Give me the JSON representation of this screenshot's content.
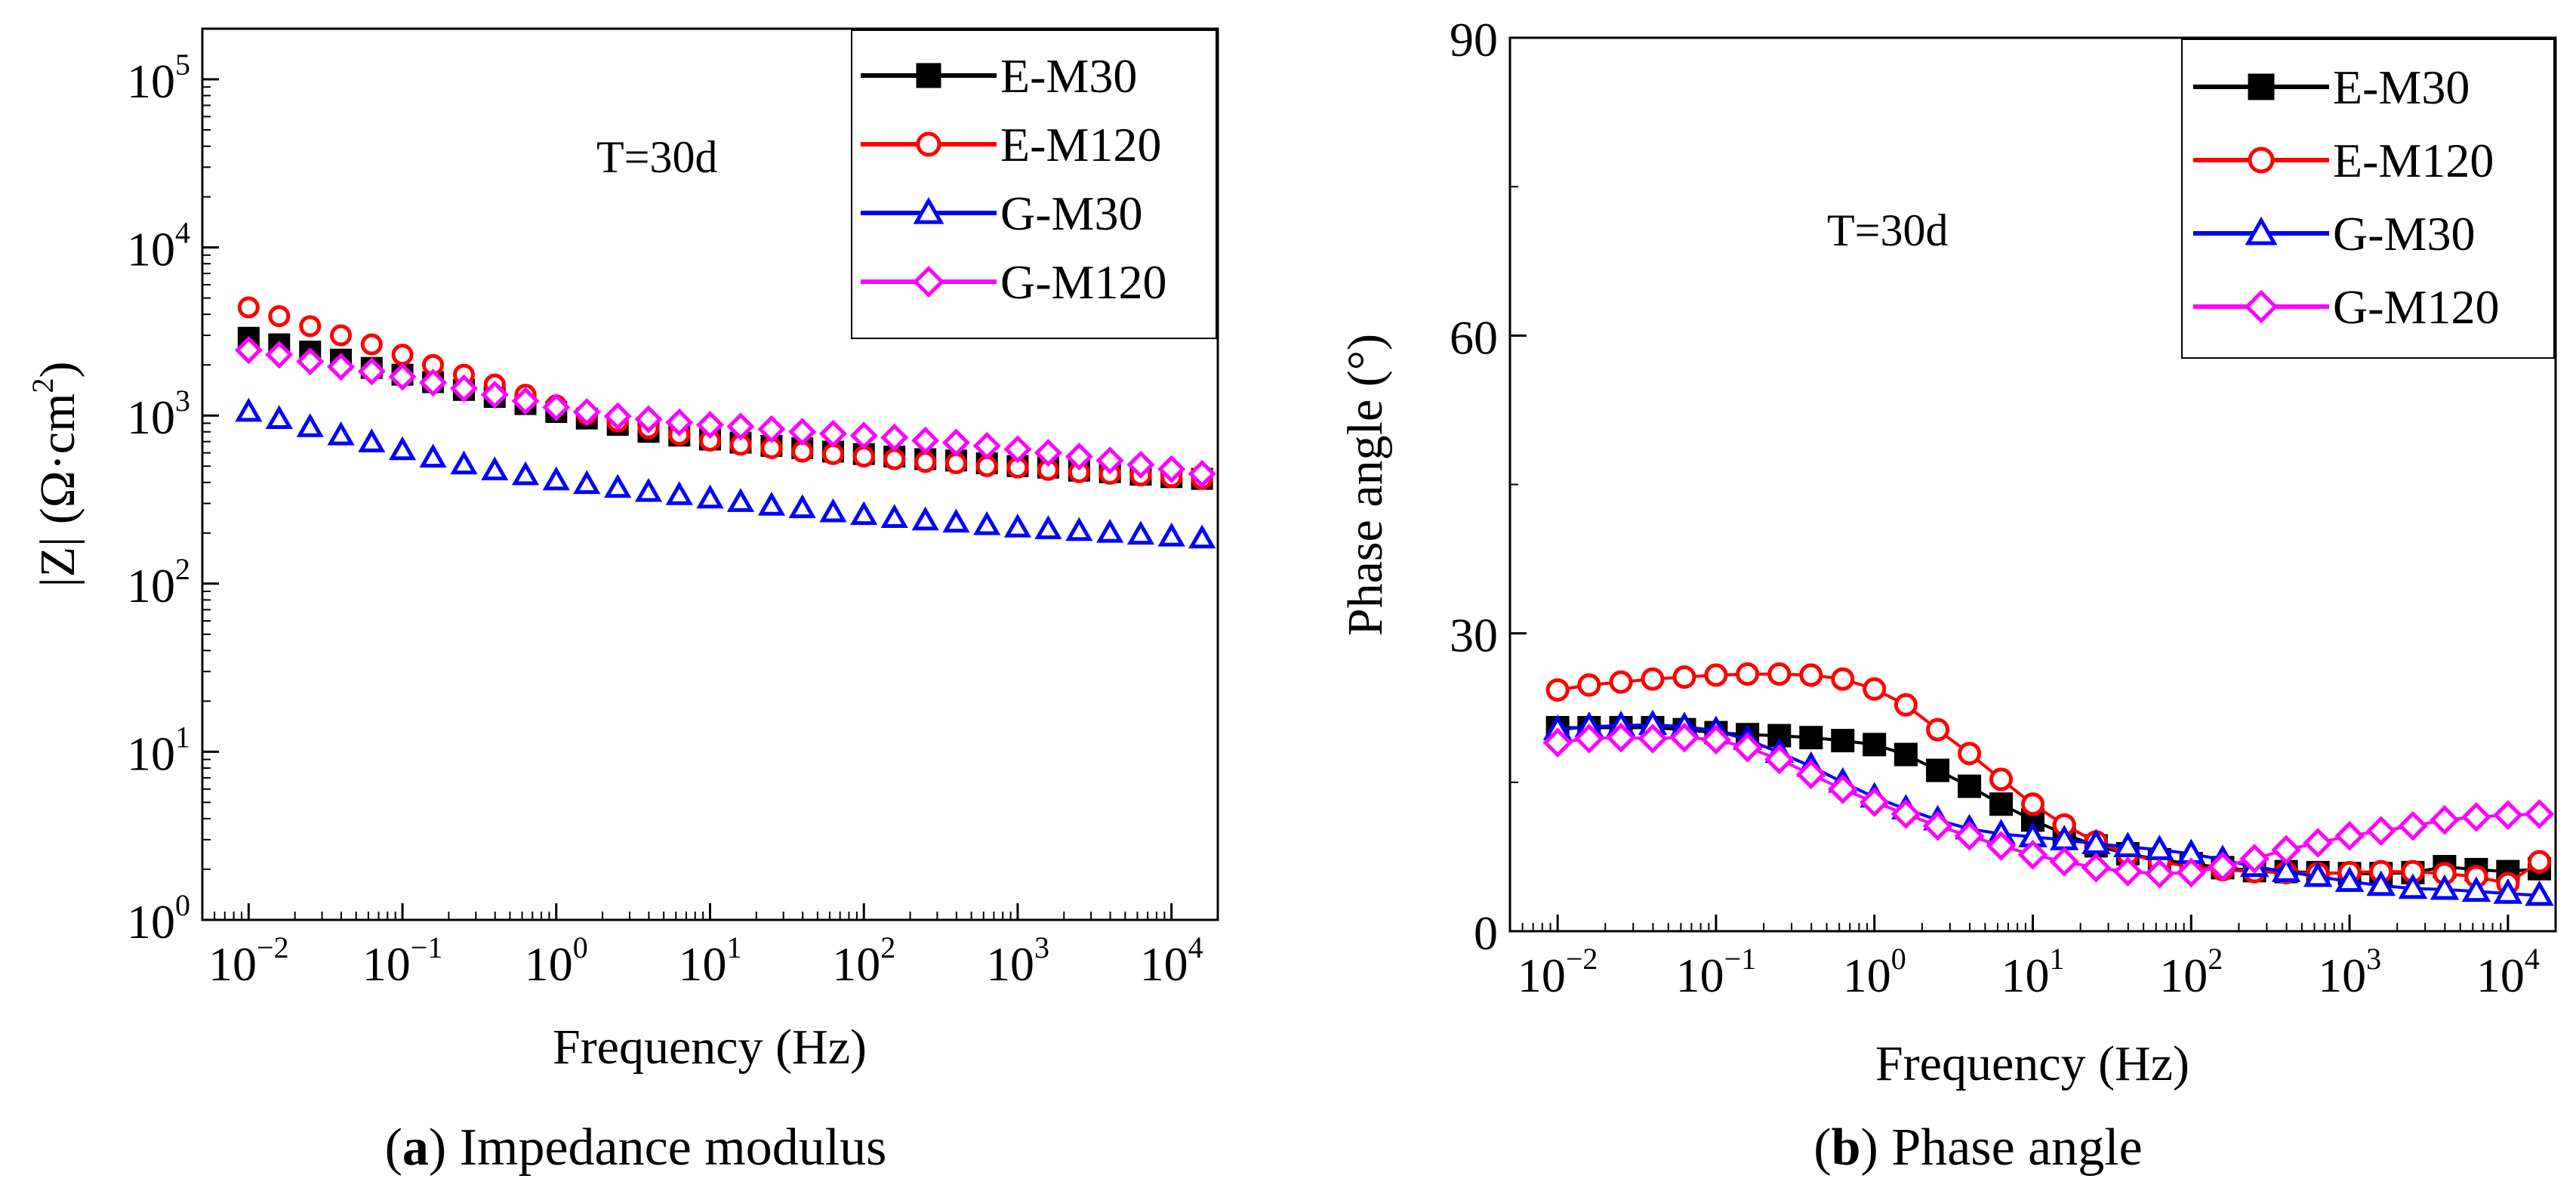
{
  "chart_data": [
    {
      "type": "scatter",
      "panel_id": "a",
      "caption_letter": "a",
      "caption_text": " Impedance modulus",
      "title": "",
      "annotation": "T=30d",
      "xlabel": "Frequency (Hz)",
      "ylabel": "|Z| (Ω·cm²)",
      "ylabel_main": "|Z| (Ω·cm",
      "ylabel_sup": "2",
      "ylabel_close": ")",
      "xscale": "log",
      "yscale": "log",
      "xlim": [
        0.005,
        20000
      ],
      "ylim": [
        1,
        200000
      ],
      "xticks": [
        {
          "v": 0.01,
          "b": "10",
          "e": "−2"
        },
        {
          "v": 0.1,
          "b": "10",
          "e": "−1"
        },
        {
          "v": 1,
          "b": "10",
          "e": "0"
        },
        {
          "v": 10,
          "b": "10",
          "e": "1"
        },
        {
          "v": 100,
          "b": "10",
          "e": "2"
        },
        {
          "v": 1000,
          "b": "10",
          "e": "3"
        },
        {
          "v": 10000,
          "b": "10",
          "e": "4"
        }
      ],
      "yticks": [
        {
          "v": 1,
          "b": "10",
          "e": "0"
        },
        {
          "v": 10,
          "b": "10",
          "e": "1"
        },
        {
          "v": 100,
          "b": "10",
          "e": "2"
        },
        {
          "v": 1000,
          "b": "10",
          "e": "3"
        },
        {
          "v": 10000,
          "b": "10",
          "e": "4"
        },
        {
          "v": 100000,
          "b": "10",
          "e": "5"
        }
      ],
      "legend_position": "top-right",
      "series": [
        {
          "name": "E-M30",
          "color": "#000000",
          "marker": "square",
          "fill": "solid",
          "x": [
            0.01,
            0.0158,
            0.0251,
            0.0398,
            0.0631,
            0.1,
            0.158,
            0.251,
            0.398,
            0.631,
            1,
            1.58,
            2.51,
            3.98,
            6.31,
            10,
            15.8,
            25.1,
            39.8,
            63.1,
            100,
            158,
            251,
            398,
            631,
            1000,
            1580,
            2510,
            3980,
            6310,
            10000,
            15800
          ],
          "y": [
            2900,
            2650,
            2400,
            2150,
            1920,
            1750,
            1580,
            1420,
            1290,
            1170,
            1050,
            960,
            880,
            800,
            760,
            720,
            690,
            660,
            640,
            610,
            590,
            570,
            550,
            540,
            520,
            500,
            490,
            470,
            460,
            445,
            430,
            420
          ]
        },
        {
          "name": "E-M120",
          "color": "#ff0000",
          "marker": "circle",
          "fill": "hollow",
          "x": [
            0.01,
            0.0158,
            0.0251,
            0.0398,
            0.0631,
            0.1,
            0.158,
            0.251,
            0.398,
            0.631,
            1,
            1.58,
            2.51,
            3.98,
            6.31,
            10,
            15.8,
            25.1,
            39.8,
            63.1,
            100,
            158,
            251,
            398,
            631,
            1000,
            1580,
            2510,
            3980,
            6310,
            10000,
            15800
          ],
          "y": [
            4400,
            3900,
            3400,
            3000,
            2650,
            2300,
            2000,
            1750,
            1530,
            1330,
            1150,
            1020,
            920,
            840,
            770,
            710,
            670,
            640,
            610,
            590,
            570,
            550,
            530,
            520,
            500,
            490,
            475,
            460,
            450,
            440,
            430,
            420
          ]
        },
        {
          "name": "G-M30",
          "color": "#0000ff",
          "marker": "triangle",
          "fill": "hollow",
          "x": [
            0.01,
            0.0158,
            0.0251,
            0.0398,
            0.0631,
            0.1,
            0.158,
            0.251,
            0.398,
            0.631,
            1,
            1.58,
            2.51,
            3.98,
            6.31,
            10,
            15.8,
            25.1,
            39.8,
            63.1,
            100,
            158,
            251,
            398,
            631,
            1000,
            1580,
            2510,
            3980,
            6310,
            10000,
            15800
          ],
          "y": [
            1050,
            950,
            850,
            760,
            690,
            620,
            560,
            510,
            470,
            440,
            410,
            390,
            370,
            350,
            335,
            320,
            305,
            290,
            280,
            265,
            255,
            245,
            237,
            230,
            222,
            215,
            210,
            205,
            200,
            195,
            190,
            185
          ]
        },
        {
          "name": "G-M120",
          "color": "#ff00ff",
          "marker": "diamond",
          "fill": "hollow",
          "x": [
            0.01,
            0.0158,
            0.0251,
            0.0398,
            0.0631,
            0.1,
            0.158,
            0.251,
            0.398,
            0.631,
            1,
            1.58,
            2.51,
            3.98,
            6.31,
            10,
            15.8,
            25.1,
            39.8,
            63.1,
            100,
            158,
            251,
            398,
            631,
            1000,
            1580,
            2510,
            3980,
            6310,
            10000,
            15800
          ],
          "y": [
            2450,
            2300,
            2100,
            1950,
            1830,
            1700,
            1570,
            1450,
            1330,
            1220,
            1120,
            1050,
            990,
            950,
            910,
            880,
            860,
            830,
            800,
            780,
            760,
            740,
            710,
            690,
            660,
            630,
            600,
            570,
            540,
            510,
            480,
            450
          ]
        }
      ]
    },
    {
      "type": "line",
      "panel_id": "b",
      "caption_letter": "b",
      "caption_text": " Phase angle",
      "title": "",
      "annotation": "T=30d",
      "xlabel": "Frequency (Hz)",
      "ylabel": "Phase angle (°)",
      "xscale": "log",
      "yscale": "linear",
      "xlim": [
        0.005,
        20000
      ],
      "ylim": [
        0,
        90
      ],
      "xticks": [
        {
          "v": 0.01,
          "b": "10",
          "e": "−2"
        },
        {
          "v": 0.1,
          "b": "10",
          "e": "−1"
        },
        {
          "v": 1,
          "b": "10",
          "e": "0"
        },
        {
          "v": 10,
          "b": "10",
          "e": "1"
        },
        {
          "v": 100,
          "b": "10",
          "e": "2"
        },
        {
          "v": 1000,
          "b": "10",
          "e": "3"
        },
        {
          "v": 10000,
          "b": "10",
          "e": "4"
        }
      ],
      "yticks": [
        {
          "v": 0,
          "t": "0"
        },
        {
          "v": 30,
          "t": "30"
        },
        {
          "v": 60,
          "t": "60"
        },
        {
          "v": 90,
          "t": "90"
        }
      ],
      "legend_position": "top-right",
      "series": [
        {
          "name": "E-M30",
          "color": "#000000",
          "marker": "square",
          "fill": "solid",
          "x": [
            0.01,
            0.0158,
            0.0251,
            0.0398,
            0.0631,
            0.1,
            0.158,
            0.251,
            0.398,
            0.631,
            1,
            1.58,
            2.51,
            3.98,
            6.31,
            10,
            15.8,
            25.1,
            39.8,
            63.1,
            100,
            158,
            251,
            398,
            631,
            1000,
            1580,
            2510,
            3980,
            6310,
            10000,
            15800
          ],
          "y": [
            20.5,
            20.5,
            20.5,
            20.5,
            20.3,
            20.0,
            19.8,
            19.7,
            19.5,
            19.2,
            18.8,
            17.8,
            16.2,
            14.6,
            12.8,
            11.2,
            9.8,
            8.6,
            7.8,
            7.2,
            6.8,
            6.4,
            6.1,
            6.0,
            5.9,
            5.8,
            5.8,
            5.9,
            6.5,
            6.2,
            6.0,
            6.3
          ]
        },
        {
          "name": "E-M120",
          "color": "#ff0000",
          "marker": "circle",
          "fill": "hollow",
          "x": [
            0.01,
            0.0158,
            0.0251,
            0.0398,
            0.0631,
            0.1,
            0.158,
            0.251,
            0.398,
            0.631,
            1,
            1.58,
            2.51,
            3.98,
            6.31,
            10,
            15.8,
            25.1,
            39.8,
            63.1,
            100,
            158,
            251,
            398,
            631,
            1000,
            1580,
            2510,
            3980,
            6310,
            10000,
            15800
          ],
          "y": [
            24.3,
            24.8,
            25.1,
            25.4,
            25.6,
            25.8,
            25.9,
            25.9,
            25.8,
            25.4,
            24.4,
            22.8,
            20.3,
            17.9,
            15.3,
            12.8,
            10.7,
            9.0,
            7.8,
            7.0,
            6.5,
            6.2,
            6.0,
            5.9,
            5.8,
            5.9,
            6.0,
            6.0,
            5.8,
            5.5,
            4.8,
            7.0
          ]
        },
        {
          "name": "G-M30",
          "color": "#0000ff",
          "marker": "triangle",
          "fill": "hollow",
          "x": [
            0.01,
            0.0158,
            0.0251,
            0.0398,
            0.0631,
            0.1,
            0.158,
            0.251,
            0.398,
            0.631,
            1,
            1.58,
            2.51,
            3.98,
            6.31,
            10,
            15.8,
            25.1,
            39.8,
            63.1,
            100,
            158,
            251,
            398,
            631,
            1000,
            1580,
            2510,
            3980,
            6310,
            10000,
            15800
          ],
          "y": [
            20.3,
            20.6,
            20.7,
            20.8,
            20.6,
            20.2,
            19.3,
            18.0,
            16.6,
            15.0,
            13.5,
            12.3,
            11.2,
            10.3,
            9.8,
            9.5,
            9.2,
            8.8,
            8.5,
            8.2,
            7.8,
            7.2,
            6.5,
            6.0,
            5.5,
            5.0,
            4.6,
            4.3,
            4.2,
            4.0,
            3.8,
            3.6
          ]
        },
        {
          "name": "G-M120",
          "color": "#ff00ff",
          "marker": "diamond",
          "fill": "hollow",
          "x": [
            0.01,
            0.0158,
            0.0251,
            0.0398,
            0.0631,
            0.1,
            0.158,
            0.251,
            0.398,
            0.631,
            1,
            1.58,
            2.51,
            3.98,
            6.31,
            10,
            15.8,
            25.1,
            39.8,
            63.1,
            100,
            158,
            251,
            398,
            631,
            1000,
            1580,
            2510,
            3980,
            6310,
            10000,
            15800
          ],
          "y": [
            19.0,
            19.4,
            19.5,
            19.4,
            19.5,
            19.3,
            18.5,
            17.3,
            15.8,
            14.3,
            13.0,
            11.8,
            10.6,
            9.6,
            8.6,
            7.7,
            7.0,
            6.4,
            6.0,
            5.8,
            5.9,
            6.5,
            7.3,
            8.2,
            8.9,
            9.6,
            10.1,
            10.6,
            11.2,
            11.5,
            11.7,
            11.8
          ]
        }
      ]
    }
  ]
}
